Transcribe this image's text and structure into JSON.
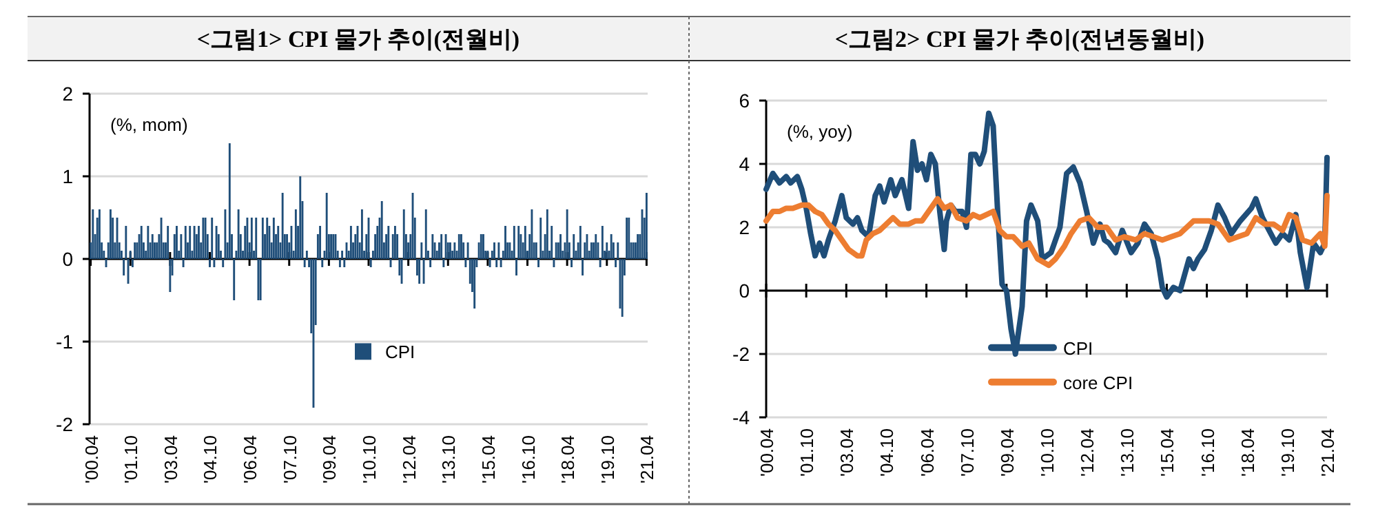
{
  "chart_data": [
    {
      "type": "bar",
      "title": "<그림1> CPI 물가 추이(전월비)",
      "annotations": [
        "(%, mom)"
      ],
      "categories": [
        "'00.04",
        null,
        null,
        null,
        null,
        null,
        null,
        null,
        null,
        null,
        null,
        null,
        null,
        null,
        null,
        null,
        null,
        null,
        "'01.10",
        null,
        null,
        null,
        null,
        null,
        null,
        null,
        null,
        null,
        null,
        null,
        null,
        null,
        null,
        null,
        null,
        null,
        "'03.04",
        null,
        null,
        null,
        null,
        null,
        null,
        null,
        null,
        null,
        null,
        null,
        null,
        null,
        null,
        null,
        null,
        null,
        "'04.10",
        null,
        null,
        null,
        null,
        null,
        null,
        null,
        null,
        null,
        null,
        null,
        null,
        null,
        null,
        null,
        null,
        null,
        "'06.04",
        null,
        null,
        null,
        null,
        null,
        null,
        null,
        null,
        null,
        null,
        null,
        null,
        null,
        null,
        null,
        null,
        null,
        "'07.10",
        null,
        null,
        null,
        null,
        null,
        null,
        null,
        null,
        null,
        null,
        null,
        null,
        null,
        null,
        null,
        null,
        null,
        "'09.04",
        null,
        null,
        null,
        null,
        null,
        null,
        null,
        null,
        null,
        null,
        null,
        null,
        null,
        null,
        null,
        null,
        null,
        "'10.10",
        null,
        null,
        null,
        null,
        null,
        null,
        null,
        null,
        null,
        null,
        null,
        null,
        null,
        null,
        null,
        null,
        null,
        "'12.04",
        null,
        null,
        null,
        null,
        null,
        null,
        null,
        null,
        null,
        null,
        null,
        null,
        null,
        null,
        null,
        null,
        null,
        "'13.10",
        null,
        null,
        null,
        null,
        null,
        null,
        null,
        null,
        null,
        null,
        null,
        null,
        null,
        null,
        null,
        null,
        null,
        "'15.04",
        null,
        null,
        null,
        null,
        null,
        null,
        null,
        null,
        null,
        null,
        null,
        null,
        null,
        null,
        null,
        null,
        null,
        "'16.10",
        null,
        null,
        null,
        null,
        null,
        null,
        null,
        null,
        null,
        null,
        null,
        null,
        null,
        null,
        null,
        null,
        null,
        "'18.04",
        null,
        null,
        null,
        null,
        null,
        null,
        null,
        null,
        null,
        null,
        null,
        null,
        null,
        null,
        null,
        null,
        null,
        "'19.10",
        null,
        null,
        null,
        null,
        null,
        null,
        null,
        null,
        null,
        null,
        null,
        null,
        null,
        null,
        null,
        null,
        null,
        "'21.04"
      ],
      "series": [
        {
          "name": "CPI",
          "color": "#1f4e79",
          "values": [
            0.2,
            0.6,
            0.3,
            0.5,
            0.6,
            0.2,
            0.1,
            -0.1,
            0.2,
            0.6,
            0.5,
            0.2,
            0.5,
            0.2,
            0.1,
            -0.2,
            0.4,
            -0.3,
            0.1,
            -0.1,
            0.2,
            0.2,
            0.3,
            0.4,
            0.2,
            0.1,
            0.4,
            0.2,
            0.3,
            0.2,
            0.2,
            0.3,
            0.5,
            0.2,
            0.2,
            0.4,
            -0.4,
            -0.2,
            0.3,
            0.4,
            0.1,
            0.3,
            -0.1,
            0.4,
            0.2,
            0.4,
            0.1,
            0.4,
            0.3,
            0.4,
            0.2,
            0.5,
            0.5,
            0.3,
            -0.1,
            0.5,
            -0.1,
            0.4,
            0.3,
            0.1,
            -0.1,
            0.6,
            0.2,
            1.4,
            0.3,
            -0.5,
            0.1,
            0.6,
            0.3,
            0.1,
            0.4,
            0.5,
            0.2,
            0.5,
            0.1,
            0.5,
            -0.5,
            -0.5,
            0.5,
            0.3,
            0.5,
            0.4,
            0.2,
            0.5,
            0.3,
            0.4,
            0.2,
            0.8,
            0.3,
            0.3,
            0.2,
            0.4,
            0.1,
            0.6,
            0.4,
            1.0,
            0.7,
            -0.1,
            0.1,
            -0.1,
            -0.9,
            -1.8,
            -0.8,
            0.3,
            0.4,
            -0.1,
            0.1,
            0.8,
            0.3,
            0.3,
            0.3,
            0.3,
            0.1,
            -0.1,
            0.1,
            -0.1,
            0.2,
            0.1,
            0.4,
            0.2,
            0.3,
            0.4,
            0.2,
            0.6,
            0.1,
            0.3,
            0.5,
            -0.1,
            0.1,
            0.3,
            0.4,
            0.5,
            0.7,
            0.2,
            0.3,
            0.4,
            -0.1,
            0.3,
            0.4,
            0.3,
            -0.2,
            -0.3,
            0.6,
            0.3,
            0.2,
            0.3,
            0.8,
            0.5,
            -0.2,
            -0.3,
            0.2,
            -0.3,
            0.6,
            0.1,
            -0.1,
            0.3,
            0.2,
            0.1,
            0.2,
            0.3,
            -0.1,
            0.3,
            0.2,
            0.2,
            0.1,
            0.2,
            0.1,
            0.3,
            0.3,
            0.2,
            -0.1,
            0.2,
            -0.3,
            -0.4,
            -0.6,
            -0.1,
            0.2,
            0.3,
            0.3,
            0.1,
            0.1,
            -0.1,
            0.1,
            0.2,
            -0.1,
            0.2,
            -0.1,
            0.1,
            0.4,
            0.2,
            0.2,
            0.1,
            0.4,
            -0.2,
            0.4,
            0.3,
            0.2,
            0.4,
            0.1,
            0.3,
            0.6,
            0.2,
            0.2,
            -0.1,
            0.5,
            0.1,
            0.3,
            0.6,
            0.1,
            0.4,
            -0.1,
            0.2,
            0.2,
            0.3,
            0.1,
            0.2,
            0.6,
            0.2,
            -0.1,
            0.3,
            0.1,
            0.2,
            0.4,
            -0.2,
            0.2,
            0.3,
            0.1,
            0.2,
            0.2,
            0.3,
            0.2,
            -0.1,
            0.4,
            0.1,
            0.2,
            0.1,
            0.3,
            0.2,
            -0.1,
            0.2,
            -0.6,
            -0.7,
            -0.2,
            0.5,
            0.5,
            0.2,
            0.2,
            0.2,
            0.3,
            0.3,
            0.6,
            0.5,
            0.8
          ]
        }
      ],
      "ylim": [
        -2,
        2
      ],
      "yticks": [
        -2,
        -1,
        0,
        1,
        2
      ],
      "grid": "y",
      "legend": "bottom"
    },
    {
      "type": "line",
      "title": "<그림2> CPI 물가 추이(전년동월비)",
      "annotations": [
        "(%, yoy)"
      ],
      "xlim": [
        "2000-04",
        "2021-04"
      ],
      "xticks": [
        {
          "value": "2000-04",
          "label": "'00.04"
        },
        {
          "value": "2001-10",
          "label": "'01.10"
        },
        {
          "value": "2003-04",
          "label": "'03.04"
        },
        {
          "value": "2004-10",
          "label": "'04.10"
        },
        {
          "value": "2006-04",
          "label": "'06.04"
        },
        {
          "value": "2007-10",
          "label": "'07.10"
        },
        {
          "value": "2009-04",
          "label": "'09.04"
        },
        {
          "value": "2010-10",
          "label": "'10.10"
        },
        {
          "value": "2012-04",
          "label": "'12.04"
        },
        {
          "value": "2013-10",
          "label": "'13.10"
        },
        {
          "value": "2015-04",
          "label": "'15.04"
        },
        {
          "value": "2016-10",
          "label": "'16.10"
        },
        {
          "value": "2018-04",
          "label": "'18.04"
        },
        {
          "value": "2019-10",
          "label": "'19.10"
        },
        {
          "value": "2021-04",
          "label": "'21.04"
        }
      ],
      "ylim": [
        -4,
        6
      ],
      "yticks": [
        -4,
        -2,
        0,
        2,
        4,
        6
      ],
      "grid": "y",
      "legend": "bottom",
      "series": [
        {
          "name": "CPI",
          "color": "#1f4e79",
          "x": [
            "2000-04",
            "2000-07",
            "2000-10",
            "2001-01",
            "2001-03",
            "2001-06",
            "2001-08",
            "2001-10",
            "2001-12",
            "2002-02",
            "2002-04",
            "2002-06",
            "2002-08",
            "2002-11",
            "2003-02",
            "2003-04",
            "2003-07",
            "2003-09",
            "2003-11",
            "2004-02",
            "2004-05",
            "2004-07",
            "2004-09",
            "2004-12",
            "2005-02",
            "2005-05",
            "2005-08",
            "2005-10",
            "2005-12",
            "2006-02",
            "2006-04",
            "2006-06",
            "2006-08",
            "2006-10",
            "2006-12",
            "2007-01",
            "2007-03",
            "2007-05",
            "2007-08",
            "2007-10",
            "2007-12",
            "2008-02",
            "2008-04",
            "2008-06",
            "2008-08",
            "2008-10",
            "2008-12",
            "2009-02",
            "2009-04",
            "2009-06",
            "2009-08",
            "2009-11",
            "2010-01",
            "2010-03",
            "2010-06",
            "2010-08",
            "2010-12",
            "2011-04",
            "2011-07",
            "2011-10",
            "2012-01",
            "2012-04",
            "2012-07",
            "2012-10",
            "2012-12",
            "2013-02",
            "2013-05",
            "2013-08",
            "2013-12",
            "2014-03",
            "2014-06",
            "2014-09",
            "2014-12",
            "2015-02",
            "2015-04",
            "2015-07",
            "2015-10",
            "2016-02",
            "2016-04",
            "2016-06",
            "2016-09",
            "2016-12",
            "2017-03",
            "2017-06",
            "2017-09",
            "2018-01",
            "2018-06",
            "2018-08",
            "2018-11",
            "2019-02",
            "2019-05",
            "2019-08",
            "2019-11",
            "2020-02",
            "2020-04",
            "2020-07",
            "2020-10",
            "2021-01",
            "2021-03",
            "2021-04"
          ],
          "values": [
            3.2,
            3.7,
            3.4,
            3.6,
            3.4,
            3.6,
            3.2,
            2.6,
            1.8,
            1.1,
            1.5,
            1.1,
            1.6,
            2.2,
            3.0,
            2.3,
            2.1,
            2.3,
            1.9,
            1.7,
            3.0,
            3.3,
            2.8,
            3.5,
            3.0,
            3.5,
            2.6,
            4.7,
            3.8,
            4.0,
            3.5,
            4.3,
            4.0,
            2.5,
            1.3,
            2.2,
            2.7,
            2.5,
            2.5,
            2.0,
            4.3,
            4.3,
            4.0,
            4.4,
            5.6,
            5.2,
            2.5,
            0.2,
            0.0,
            -1.2,
            -2.0,
            -0.5,
            2.2,
            2.7,
            2.2,
            1.0,
            1.2,
            2.0,
            3.7,
            3.9,
            3.4,
            2.5,
            1.5,
            2.1,
            1.6,
            1.5,
            1.2,
            1.9,
            1.2,
            1.5,
            2.1,
            1.8,
            1.0,
            0.1,
            -0.2,
            0.1,
            0.0,
            1.0,
            0.7,
            1.0,
            1.3,
            1.9,
            2.7,
            2.3,
            1.8,
            2.2,
            2.6,
            2.9,
            2.3,
            1.9,
            1.5,
            1.8,
            1.6,
            2.4,
            1.2,
            0.1,
            1.5,
            1.2,
            1.5,
            4.2
          ]
        },
        {
          "name": "core CPI",
          "color": "#ed7d31",
          "x": [
            "2000-04",
            "2000-07",
            "2000-10",
            "2001-01",
            "2001-04",
            "2001-08",
            "2001-11",
            "2002-02",
            "2002-05",
            "2002-08",
            "2002-11",
            "2003-02",
            "2003-05",
            "2003-09",
            "2003-11",
            "2004-01",
            "2004-04",
            "2004-07",
            "2004-10",
            "2005-01",
            "2005-04",
            "2005-08",
            "2005-11",
            "2006-02",
            "2006-06",
            "2006-09",
            "2006-12",
            "2007-03",
            "2007-06",
            "2007-10",
            "2008-01",
            "2008-04",
            "2008-07",
            "2008-10",
            "2009-01",
            "2009-04",
            "2009-07",
            "2009-11",
            "2010-02",
            "2010-06",
            "2010-11",
            "2011-02",
            "2011-06",
            "2011-09",
            "2012-01",
            "2012-05",
            "2012-09",
            "2013-01",
            "2013-05",
            "2013-09",
            "2014-02",
            "2014-06",
            "2014-10",
            "2015-02",
            "2015-06",
            "2015-10",
            "2016-04",
            "2016-07",
            "2016-11",
            "2017-03",
            "2017-08",
            "2017-12",
            "2018-04",
            "2018-08",
            "2018-12",
            "2019-04",
            "2019-08",
            "2019-11",
            "2020-02",
            "2020-05",
            "2020-09",
            "2021-01",
            "2021-03",
            "2021-04"
          ],
          "values": [
            2.2,
            2.5,
            2.5,
            2.6,
            2.6,
            2.7,
            2.7,
            2.5,
            2.4,
            2.1,
            1.9,
            1.6,
            1.3,
            1.1,
            1.1,
            1.6,
            1.8,
            1.9,
            2.1,
            2.3,
            2.1,
            2.1,
            2.2,
            2.2,
            2.6,
            2.9,
            2.6,
            2.7,
            2.3,
            2.2,
            2.4,
            2.3,
            2.4,
            2.5,
            1.9,
            1.7,
            1.7,
            1.4,
            1.5,
            1.0,
            0.8,
            1.0,
            1.4,
            1.8,
            2.2,
            2.3,
            2.0,
            2.0,
            1.6,
            1.7,
            1.6,
            1.8,
            1.7,
            1.6,
            1.7,
            1.8,
            2.2,
            2.2,
            2.2,
            2.1,
            1.6,
            1.7,
            1.8,
            2.3,
            2.1,
            2.1,
            1.9,
            2.4,
            2.3,
            1.6,
            1.5,
            1.8,
            1.4,
            3.0
          ]
        }
      ]
    }
  ]
}
